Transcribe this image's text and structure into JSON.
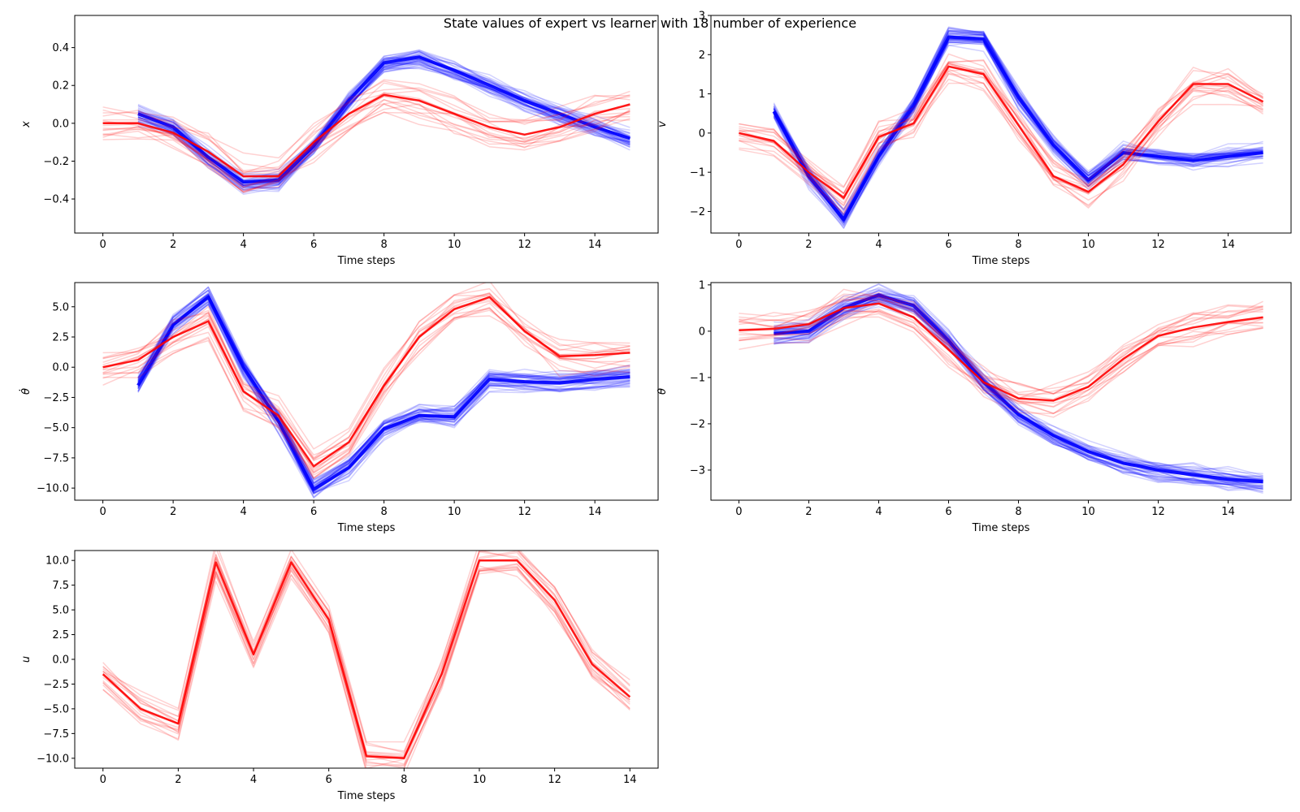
{
  "figure_title": "State values of expert vs learner with 18 number of experience",
  "colors": {
    "learner": "#0000ff",
    "expert": "#ff0000"
  },
  "chart_data": [
    {
      "type": "line",
      "ylabel": "x",
      "xlabel": "Time steps",
      "xlim": [
        -0.8,
        15.8
      ],
      "ylim": [
        -0.58,
        0.57
      ],
      "xticks": [
        0,
        2,
        4,
        6,
        8,
        10,
        12,
        14
      ],
      "yticks": [
        -0.4,
        -0.2,
        0.0,
        0.2,
        0.4
      ],
      "ytick_labels": [
        "−0.4",
        "−0.2",
        "0.0",
        "0.2",
        "0.4"
      ],
      "series": [
        {
          "color": "blue",
          "x": [
            1,
            2,
            3,
            4,
            5,
            6,
            7,
            8,
            9,
            10,
            11,
            12,
            13,
            14,
            15
          ],
          "values": [
            0.05,
            -0.02,
            -0.18,
            -0.31,
            -0.3,
            -0.12,
            0.12,
            0.32,
            0.35,
            0.28,
            0.2,
            0.12,
            0.05,
            -0.02,
            -0.08
          ]
        },
        {
          "color": "red",
          "x": [
            0,
            1,
            2,
            3,
            4,
            5,
            6,
            7,
            8,
            9,
            10,
            11,
            12,
            13,
            14,
            15
          ],
          "values": [
            0.0,
            0.0,
            -0.05,
            -0.15,
            -0.28,
            -0.28,
            -0.1,
            0.05,
            0.15,
            0.12,
            0.05,
            -0.02,
            -0.06,
            -0.02,
            0.05,
            0.1
          ]
        }
      ]
    },
    {
      "type": "line",
      "ylabel": "v",
      "xlabel": "Time steps",
      "xlim": [
        -0.8,
        15.8
      ],
      "ylim": [
        -2.55,
        3.0
      ],
      "xticks": [
        0,
        2,
        4,
        6,
        8,
        10,
        12,
        14
      ],
      "yticks": [
        -2,
        -1,
        0,
        1,
        2,
        3
      ],
      "ytick_labels": [
        "−2",
        "−1",
        "0",
        "1",
        "2",
        "3"
      ],
      "series": [
        {
          "color": "blue",
          "x": [
            1,
            2,
            3,
            4,
            5,
            6,
            7,
            8,
            9,
            10,
            11,
            12,
            13,
            14,
            15
          ],
          "values": [
            0.55,
            -1.1,
            -2.2,
            -0.6,
            0.7,
            2.45,
            2.4,
            0.9,
            -0.3,
            -1.2,
            -0.5,
            -0.6,
            -0.7,
            -0.6,
            -0.5
          ]
        },
        {
          "color": "red",
          "x": [
            0,
            1,
            2,
            3,
            4,
            5,
            6,
            7,
            8,
            9,
            10,
            11,
            12,
            13,
            14,
            15
          ],
          "values": [
            0.0,
            -0.2,
            -1.0,
            -1.65,
            -0.1,
            0.25,
            1.7,
            1.5,
            0.2,
            -1.1,
            -1.5,
            -0.8,
            0.3,
            1.25,
            1.25,
            0.8
          ]
        }
      ]
    },
    {
      "type": "line",
      "ylabel": "θ̇",
      "xlabel": "Time steps",
      "xlim": [
        -0.8,
        15.8
      ],
      "ylim": [
        -11.0,
        7.0
      ],
      "xticks": [
        0,
        2,
        4,
        6,
        8,
        10,
        12,
        14
      ],
      "yticks": [
        -10.0,
        -7.5,
        -5.0,
        -2.5,
        0.0,
        2.5,
        5.0
      ],
      "ytick_labels": [
        "−10.0",
        "−7.5",
        "−5.0",
        "−2.5",
        "0.0",
        "2.5",
        "5.0"
      ],
      "series": [
        {
          "color": "blue",
          "x": [
            1,
            2,
            3,
            4,
            5,
            6,
            7,
            8,
            9,
            10,
            11,
            12,
            13,
            14,
            15
          ],
          "values": [
            -1.5,
            3.5,
            5.8,
            0.0,
            -4.5,
            -10.1,
            -8.3,
            -5.1,
            -4.0,
            -4.1,
            -1.0,
            -1.2,
            -1.3,
            -1.0,
            -0.8
          ]
        },
        {
          "color": "red",
          "x": [
            0,
            1,
            2,
            3,
            4,
            5,
            6,
            7,
            8,
            9,
            10,
            11,
            12,
            13,
            14,
            15
          ],
          "values": [
            0.0,
            0.6,
            2.5,
            3.8,
            -2.0,
            -4.0,
            -8.2,
            -6.2,
            -1.5,
            2.5,
            4.8,
            5.8,
            3.0,
            0.9,
            1.0,
            1.2
          ]
        }
      ]
    },
    {
      "type": "line",
      "ylabel": "θ",
      "xlabel": "Time steps",
      "xlim": [
        -0.8,
        15.8
      ],
      "ylim": [
        -3.65,
        1.05
      ],
      "xticks": [
        0,
        2,
        4,
        6,
        8,
        10,
        12,
        14
      ],
      "yticks": [
        -3,
        -2,
        -1,
        0,
        1
      ],
      "ytick_labels": [
        "−3",
        "−2",
        "−1",
        "0",
        "1"
      ],
      "series": [
        {
          "color": "blue",
          "x": [
            1,
            2,
            3,
            4,
            5,
            6,
            7,
            8,
            9,
            10,
            11,
            12,
            13,
            14,
            15
          ],
          "values": [
            -0.05,
            0.0,
            0.5,
            0.78,
            0.55,
            -0.2,
            -1.1,
            -1.8,
            -2.25,
            -2.6,
            -2.85,
            -3.0,
            -3.1,
            -3.2,
            -3.25
          ]
        },
        {
          "color": "red",
          "x": [
            0,
            1,
            2,
            3,
            4,
            5,
            6,
            7,
            8,
            9,
            10,
            11,
            12,
            13,
            14,
            15
          ],
          "values": [
            0.02,
            0.05,
            0.15,
            0.5,
            0.6,
            0.3,
            -0.4,
            -1.1,
            -1.45,
            -1.5,
            -1.2,
            -0.6,
            -0.1,
            0.08,
            0.2,
            0.3
          ]
        }
      ]
    },
    {
      "type": "line",
      "ylabel": "u",
      "xlabel": "Time steps",
      "xlim": [
        -0.75,
        14.75
      ],
      "ylim": [
        -11.0,
        11.0
      ],
      "xticks": [
        0,
        2,
        4,
        6,
        8,
        10,
        12,
        14
      ],
      "yticks": [
        -10.0,
        -7.5,
        -5.0,
        -2.5,
        0.0,
        2.5,
        5.0,
        7.5,
        10.0
      ],
      "ytick_labels": [
        "−10.0",
        "−7.5",
        "−5.0",
        "−2.5",
        "0.0",
        "2.5",
        "5.0",
        "7.5",
        "10.0"
      ],
      "series": [
        {
          "color": "red",
          "x": [
            0,
            1,
            2,
            3,
            4,
            5,
            6,
            7,
            8,
            9,
            10,
            11,
            12,
            13,
            14
          ],
          "values": [
            -1.5,
            -5.0,
            -6.5,
            9.8,
            0.5,
            9.8,
            4.0,
            -9.8,
            -10.0,
            -1.5,
            10.0,
            10.0,
            6.0,
            -0.5,
            -3.8
          ]
        }
      ]
    }
  ]
}
